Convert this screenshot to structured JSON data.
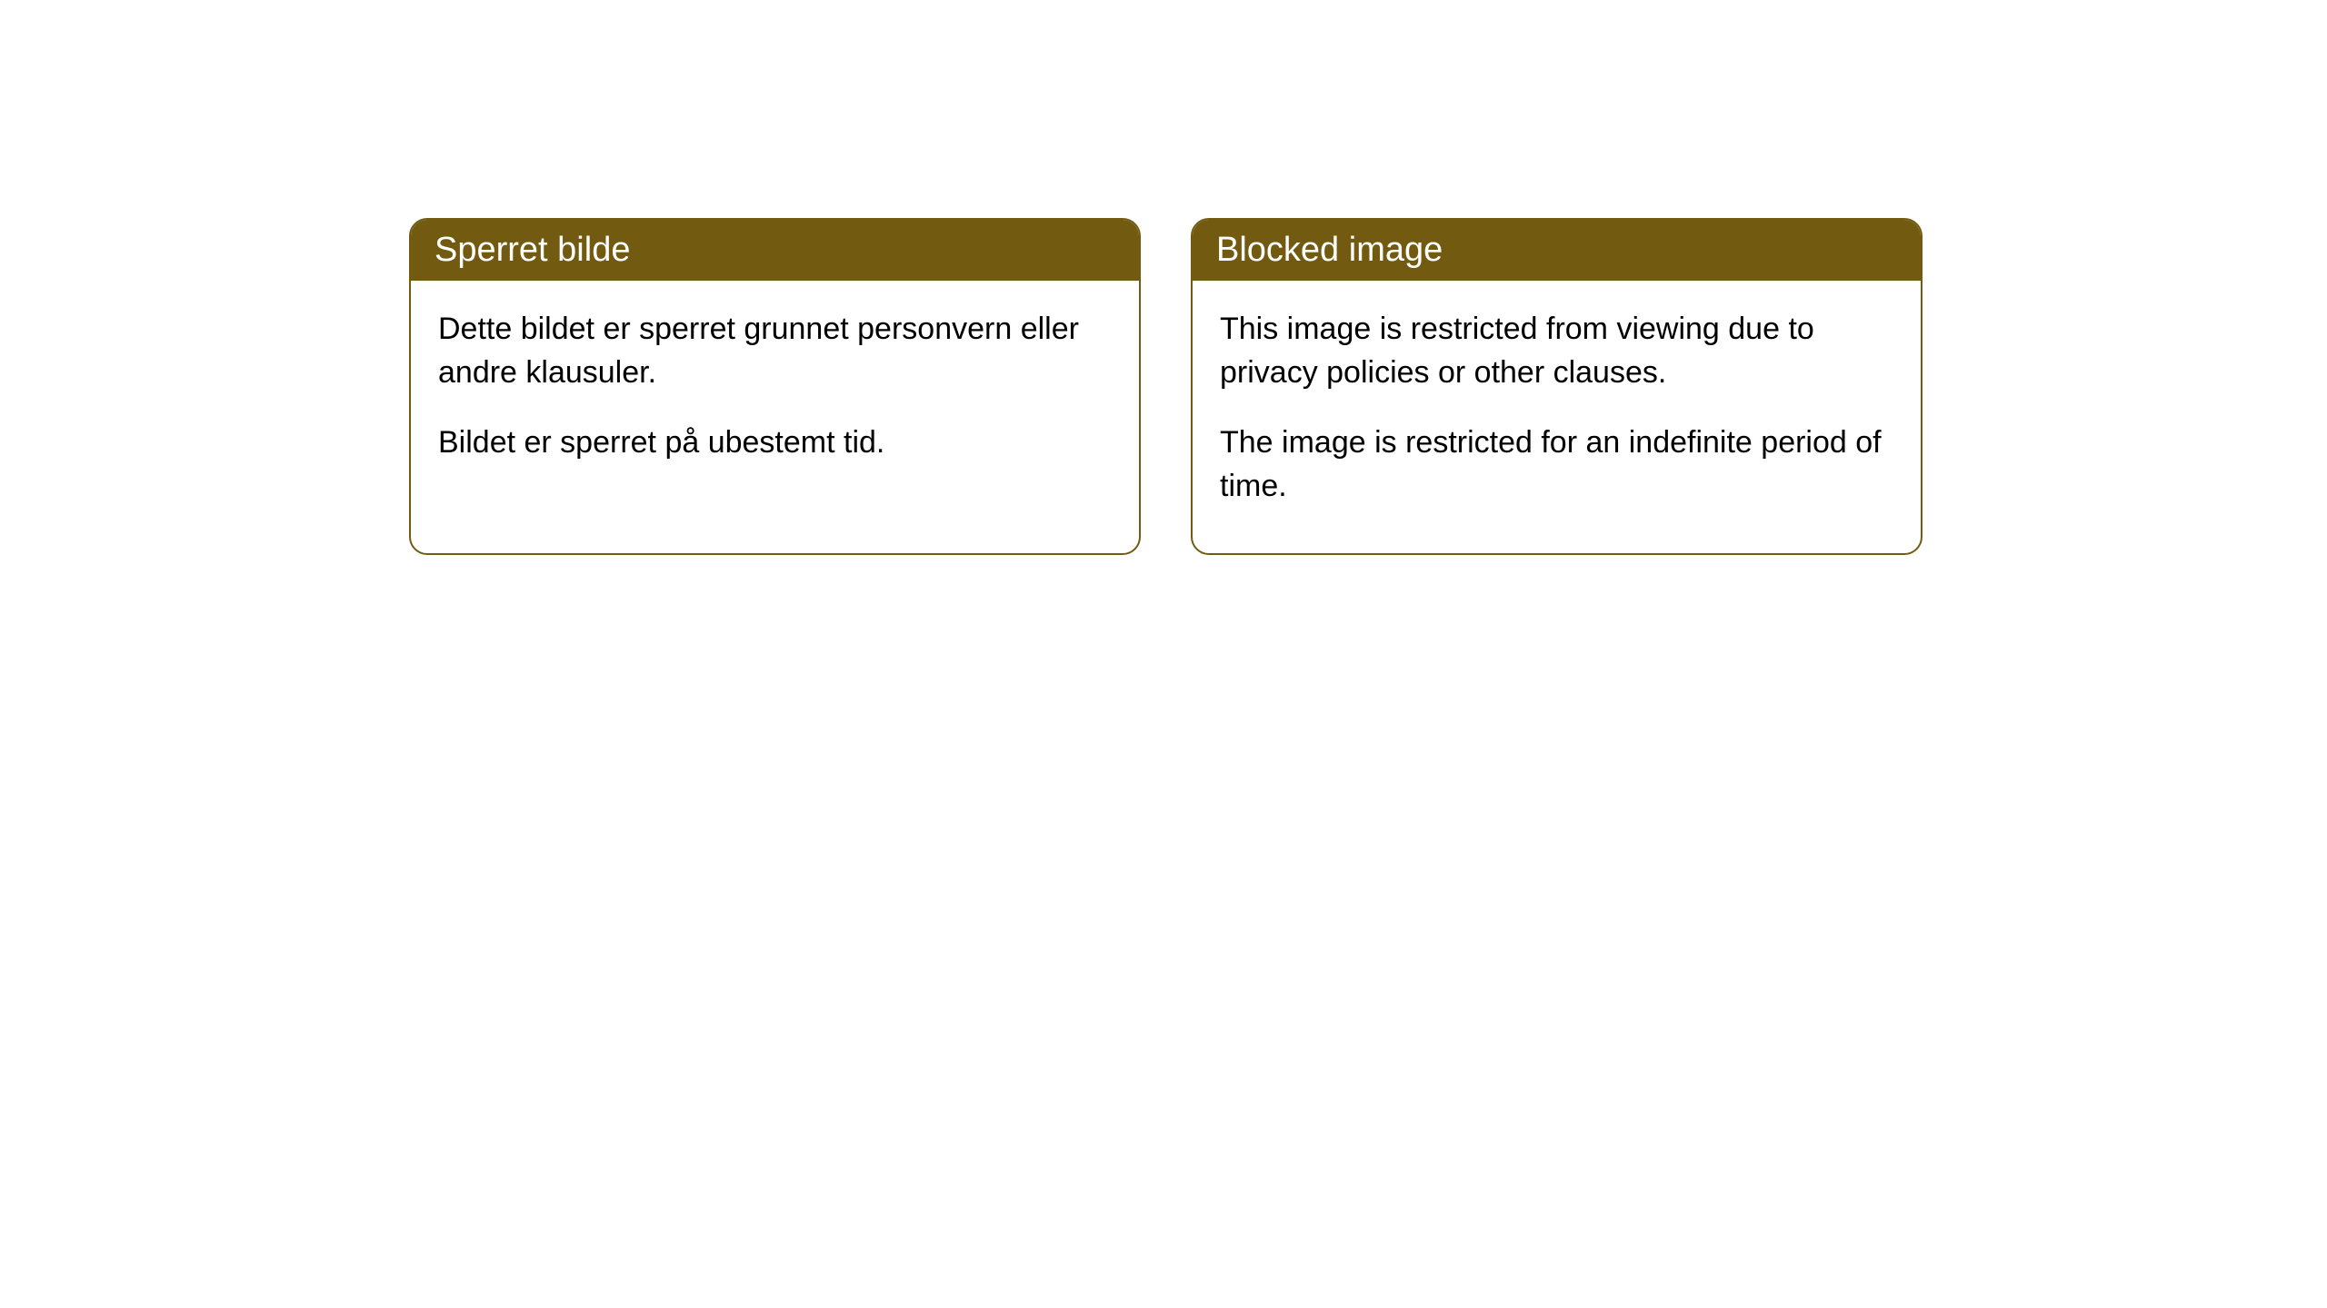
{
  "cards": [
    {
      "title": "Sperret bilde",
      "paragraph1": "Dette bildet er sperret grunnet personvern eller andre klausuler.",
      "paragraph2": "Bildet er sperret på ubestemt tid."
    },
    {
      "title": "Blocked image",
      "paragraph1": "This image is restricted from viewing due to privacy policies or other clauses.",
      "paragraph2": "The image is restricted for an indefinite period of time."
    }
  ],
  "styling": {
    "header_background_color": "#725b11",
    "header_text_color": "#ffffff",
    "border_color": "#725b11",
    "body_background_color": "#ffffff",
    "body_text_color": "#000000",
    "border_radius": 20,
    "title_fontsize": 38,
    "body_fontsize": 34
  }
}
